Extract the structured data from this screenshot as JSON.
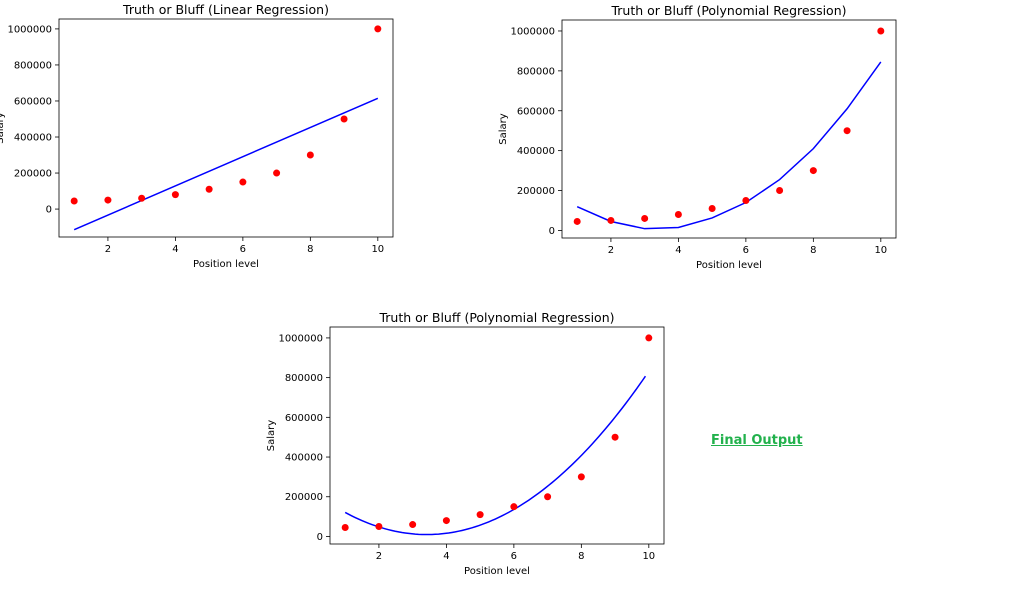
{
  "annotation": {
    "text": "Final Output",
    "color": "#22b14c"
  },
  "colors": {
    "points": "#ff0000",
    "line": "#0000ff"
  },
  "chart_data": [
    {
      "type": "scatter",
      "title": "Truth or Bluff (Linear Regression)",
      "xlabel": "Position level",
      "ylabel": "Salary",
      "xticks": [
        2,
        4,
        6,
        8,
        10
      ],
      "yticks": [
        0,
        200000,
        400000,
        600000,
        800000,
        1000000
      ],
      "xlim": [
        0.55,
        10.45
      ],
      "ylim": [
        -155000,
        1055000
      ],
      "scatter": {
        "x": [
          1,
          2,
          3,
          4,
          5,
          6,
          7,
          8,
          9,
          10
        ],
        "y": [
          45000,
          50000,
          60000,
          80000,
          110000,
          150000,
          200000,
          300000,
          500000,
          1000000
        ]
      },
      "line": {
        "x": [
          1,
          10
        ],
        "y": [
          -114454,
          615000
        ]
      }
    },
    {
      "type": "scatter",
      "title": "Truth or Bluff (Polynomial Regression)",
      "xlabel": "Position level",
      "ylabel": "Salary",
      "xticks": [
        2,
        4,
        6,
        8,
        10
      ],
      "yticks": [
        0,
        200000,
        400000,
        600000,
        800000,
        1000000
      ],
      "xlim": [
        0.55,
        10.45
      ],
      "ylim": [
        -38000,
        1055000
      ],
      "scatter": {
        "x": [
          1,
          2,
          3,
          4,
          5,
          6,
          7,
          8,
          9,
          10
        ],
        "y": [
          45000,
          50000,
          60000,
          80000,
          110000,
          150000,
          200000,
          300000,
          500000,
          1000000
        ]
      },
      "line": {
        "x": [
          1,
          2,
          3,
          4,
          5,
          6,
          7,
          8,
          9,
          10
        ],
        "y": [
          118727,
          44875,
          8750,
          14636,
          62530,
          140000,
          255000,
          410000,
          610000,
          845000
        ]
      }
    },
    {
      "type": "scatter",
      "title": "Truth or Bluff (Polynomial Regression)",
      "xlabel": "Position level",
      "ylabel": "Salary",
      "xticks": [
        2,
        4,
        6,
        8,
        10
      ],
      "yticks": [
        0,
        200000,
        400000,
        600000,
        800000,
        1000000
      ],
      "xlim": [
        0.55,
        10.45
      ],
      "ylim": [
        -38000,
        1055000
      ],
      "scatter": {
        "x": [
          1,
          2,
          3,
          4,
          5,
          6,
          7,
          8,
          9,
          10
        ],
        "y": [
          45000,
          50000,
          60000,
          80000,
          110000,
          150000,
          200000,
          300000,
          500000,
          1000000
        ]
      },
      "curve": {
        "x_start": 1,
        "x_end": 9.9,
        "coefficients": [
          232000,
          -130000,
          19000
        ],
        "samples": 90
      }
    }
  ]
}
